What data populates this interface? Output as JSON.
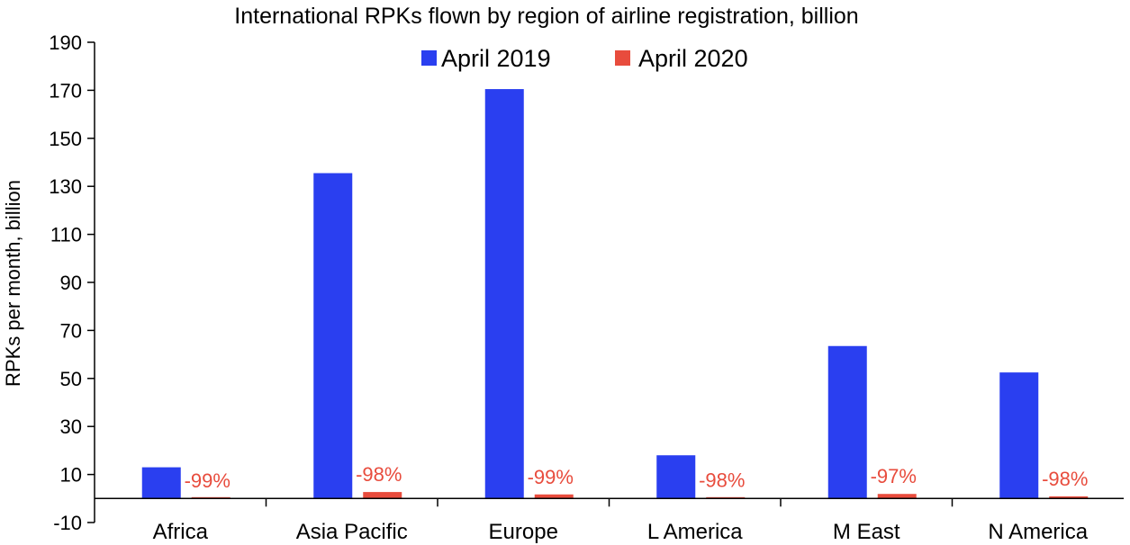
{
  "chart_data": {
    "type": "bar",
    "title": "International RPKs flown by region of airline registration, billion",
    "xlabel": "",
    "ylabel": "RPKs per month, billion",
    "ylim": [
      -10,
      190
    ],
    "yticks": [
      190,
      170,
      150,
      130,
      110,
      90,
      70,
      50,
      30,
      10,
      -10
    ],
    "categories": [
      "Africa",
      "Asia Pacific",
      "Europe",
      "L America",
      "M East",
      "N America"
    ],
    "series": [
      {
        "name": "April 2019",
        "color": "#2a3ff0",
        "values": [
          13,
          135.5,
          170.5,
          18,
          63.5,
          52.5
        ]
      },
      {
        "name": "April 2020",
        "color": "#e84c3d",
        "values": [
          0.2,
          2.7,
          1.7,
          0.3,
          1.9,
          0.9
        ]
      }
    ],
    "data_labels": [
      "-99%",
      "-98%",
      "-99%",
      "-98%",
      "-97%",
      "-98%"
    ],
    "data_label_color": "#e84c3d",
    "legend_position": "top-center",
    "grid": false
  }
}
